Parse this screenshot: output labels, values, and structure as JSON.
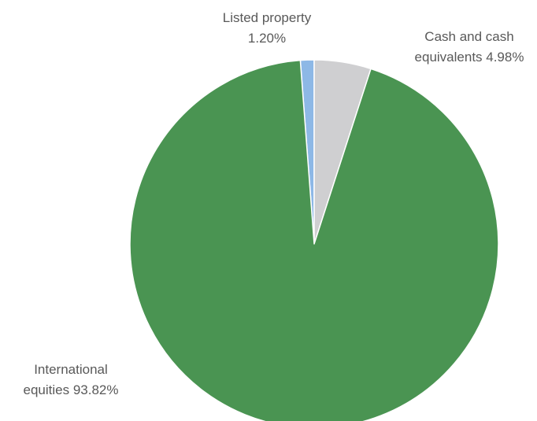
{
  "chart_data": {
    "type": "pie",
    "slices": [
      {
        "id": "listed-property",
        "label_lines": [
          "Listed property",
          "1.20%"
        ],
        "value": 1.2,
        "color": "#8db8e6"
      },
      {
        "id": "cash-and-cash-equivalents",
        "label_lines": [
          "Cash and cash",
          "equivalents 4.98%"
        ],
        "value": 4.98,
        "color": "#cfcfd1"
      },
      {
        "id": "international-equities",
        "label_lines": [
          "International",
          "equities 93.82%"
        ],
        "value": 93.82,
        "color": "#4a9452"
      }
    ],
    "start_angle_deg": 0,
    "direction": "clockwise",
    "slice_border_color": "#ffffff",
    "legend": "none"
  }
}
